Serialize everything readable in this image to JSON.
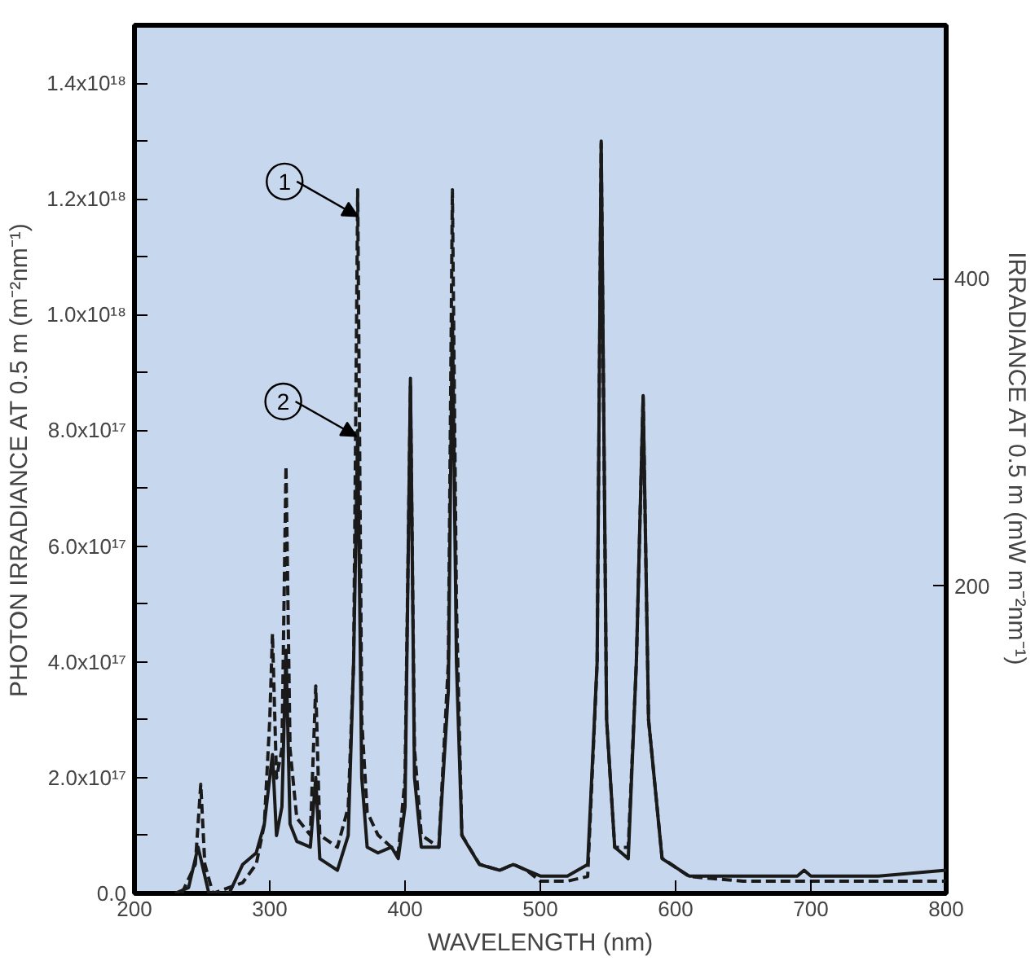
{
  "chart_data": {
    "type": "line",
    "xlabel": "WAVELENGTH (nm)",
    "ylabel": "PHOTON IRRADIANCE AT 0.5 m (m⁻²nm⁻¹)",
    "y2label": "IRRADIANCE AT 0.5 m (mW m⁻²nm⁻¹)",
    "xlim": [
      200,
      800
    ],
    "xticks": [
      200,
      300,
      400,
      500,
      600,
      700,
      800
    ],
    "ylim": [
      0,
      1.5e+18
    ],
    "yticks": [
      {
        "value": 0,
        "label": "0.0"
      },
      {
        "value": 1e+17,
        "label": null
      },
      {
        "value": 2e+17,
        "label": "2.0x10¹⁷"
      },
      {
        "value": 3e+17,
        "label": null
      },
      {
        "value": 4e+17,
        "label": "4.0x10¹⁷"
      },
      {
        "value": 5e+17,
        "label": null
      },
      {
        "value": 6e+17,
        "label": "6.0x10¹⁷"
      },
      {
        "value": 7e+17,
        "label": null
      },
      {
        "value": 8e+17,
        "label": "8.0x10¹⁷"
      },
      {
        "value": 9e+17,
        "label": null
      },
      {
        "value": 1e+18,
        "label": "1.0x10¹⁸"
      },
      {
        "value": 1.1e+18,
        "label": null
      },
      {
        "value": 1.2e+18,
        "label": "1.2x10¹⁸"
      },
      {
        "value": 1.3e+18,
        "label": null
      },
      {
        "value": 1.4e+18,
        "label": "1.4x10¹⁸"
      }
    ],
    "y2lim": [
      0,
      565
    ],
    "y2ticks": [
      200,
      400
    ],
    "grid": false,
    "marker": "none",
    "annotations": [
      {
        "text": "1",
        "x": 365,
        "y": 1.17e+18
      },
      {
        "text": "2",
        "x": 364,
        "y": 7.9e+17
      }
    ],
    "series": [
      {
        "color": "#1a1a1a",
        "line_style": "solid",
        "x": [
          230,
          240,
          247,
          251,
          255,
          270,
          280,
          290,
          296,
          300,
          302,
          305,
          309,
          312,
          315,
          320,
          330,
          334,
          337,
          350,
          358,
          362,
          365,
          368,
          372,
          380,
          390,
          395,
          400,
          404,
          407,
          412,
          425,
          432,
          435,
          438,
          442,
          455,
          470,
          480,
          490,
          500,
          520,
          535,
          542,
          545,
          549,
          555,
          565,
          571,
          576,
          580,
          590,
          610,
          650,
          690,
          695,
          700,
          750,
          800
        ],
        "values": [
          0,
          1e+16,
          8e+16,
          4e+16,
          0,
          0,
          5e+16,
          7e+16,
          1.2e+17,
          2e+17,
          2.4e+17,
          1e+17,
          1.5e+17,
          4.2e+17,
          1.2e+17,
          9e+16,
          8e+16,
          2e+17,
          6e+16,
          4e+16,
          1e+17,
          4e+17,
          8e+17,
          2e+17,
          8e+16,
          7e+16,
          8e+16,
          6e+16,
          1.5e+17,
          8.9e+17,
          2e+17,
          8e+16,
          8e+16,
          3.5e+17,
          1e+18,
          4e+17,
          1e+17,
          5e+16,
          4e+16,
          5e+16,
          4e+16,
          3e+16,
          3e+16,
          5e+16,
          4e+17,
          1.3e+18,
          3e+17,
          8e+16,
          6e+16,
          4e+17,
          8.6e+17,
          3e+17,
          6e+16,
          3e+16,
          3e+16,
          3e+16,
          4e+16,
          3e+16,
          3e+16,
          4e+16
        ]
      },
      {
        "color": "#1a1a1a",
        "line_style": "dashed",
        "axis": "y2",
        "x": [
          235,
          245,
          249,
          252,
          258,
          280,
          290,
          296,
          300,
          302,
          305,
          309,
          312,
          315,
          320,
          330,
          334,
          337,
          350,
          358,
          362,
          365,
          368,
          372,
          380,
          390,
          395,
          400,
          404,
          407,
          412,
          425,
          432,
          435,
          438,
          442,
          455,
          470,
          480,
          490,
          500,
          520,
          535,
          542,
          545,
          549,
          555,
          565,
          571,
          576,
          580,
          590,
          610,
          650,
          690,
          700,
          750,
          800
        ],
        "values": [
          0,
          19,
          71,
          19,
          0,
          7,
          19,
          45,
          113,
          169,
          75,
          94,
          278,
          94,
          49,
          38,
          135,
          38,
          30,
          56,
          150,
          458,
          113,
          53,
          38,
          30,
          26,
          75,
          330,
          94,
          38,
          30,
          150,
          458,
          188,
          38,
          19,
          15,
          19,
          15,
          8,
          8,
          11,
          150,
          488,
          113,
          30,
          30,
          150,
          323,
          113,
          23,
          11,
          8,
          8,
          8,
          8,
          8
        ]
      }
    ]
  }
}
